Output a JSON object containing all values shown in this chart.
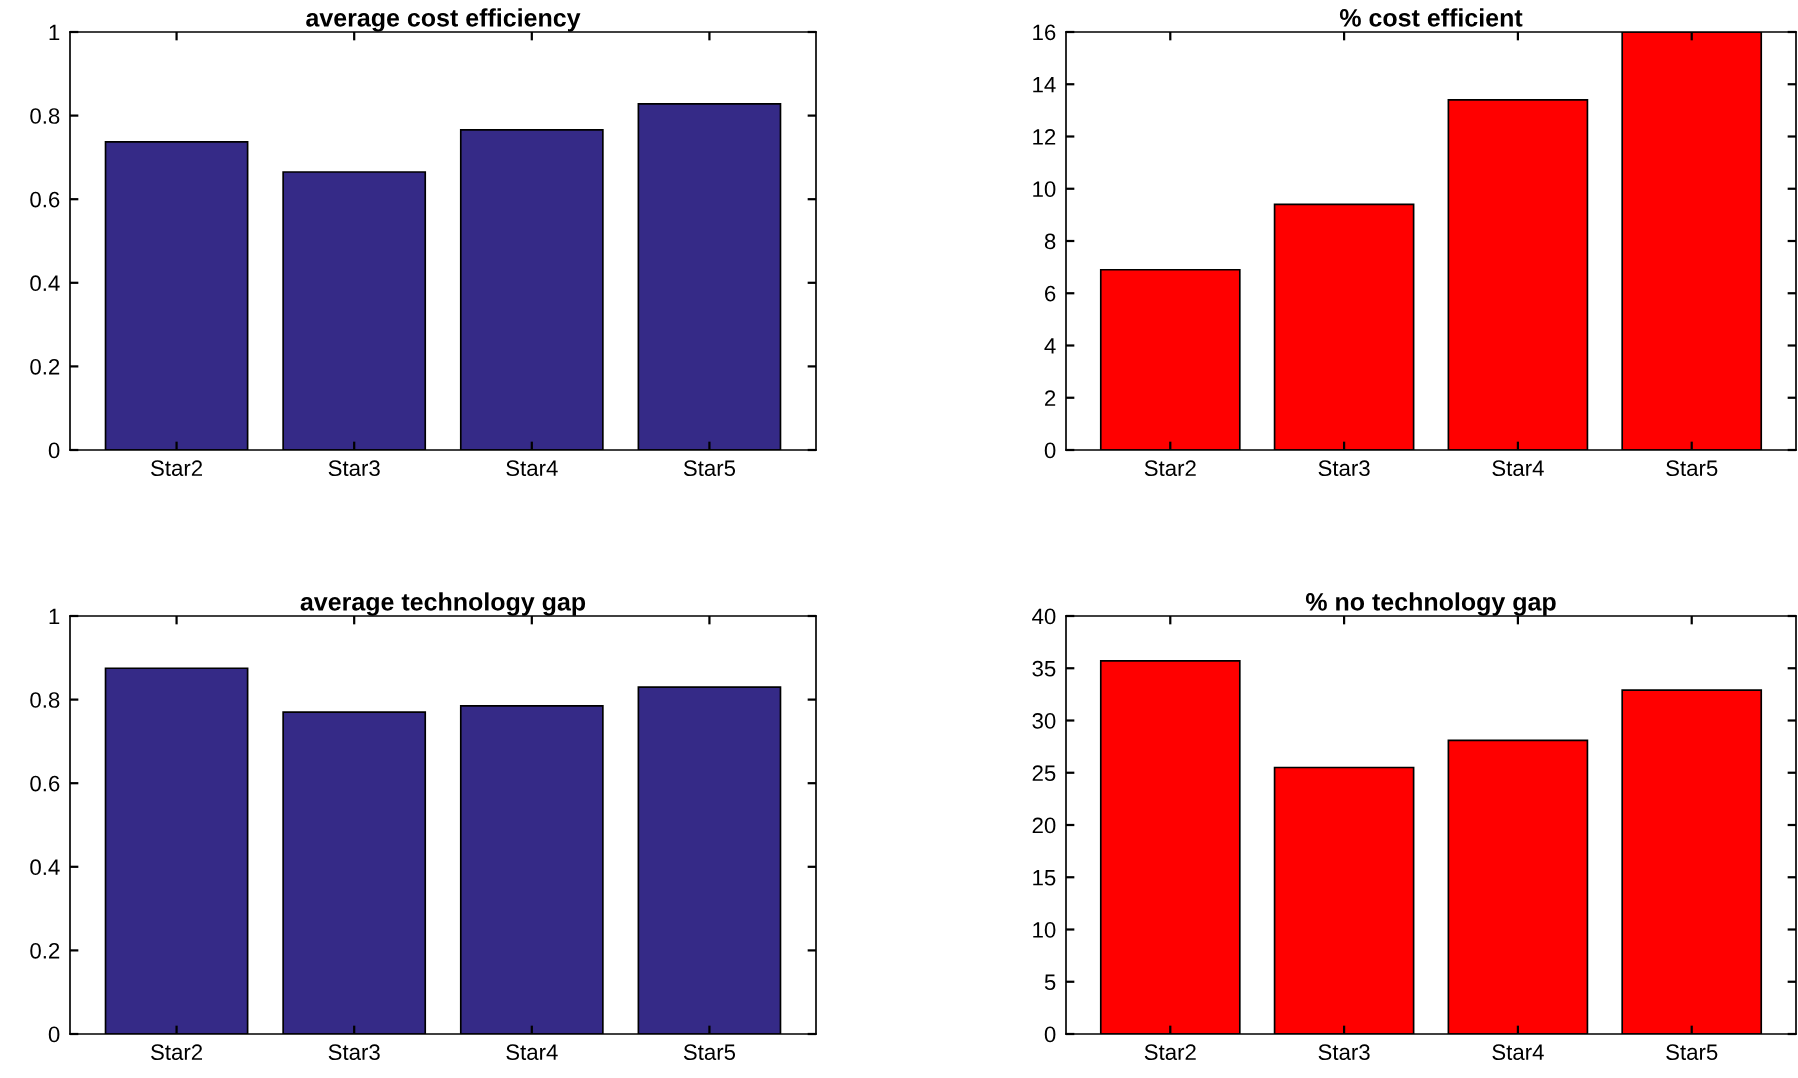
{
  "chart_data": [
    {
      "type": "bar",
      "title": "average cost efficiency",
      "categories": [
        "Star2",
        "Star3",
        "Star4",
        "Star5"
      ],
      "values": [
        0.737,
        0.665,
        0.766,
        0.828
      ],
      "color": "#352a87",
      "ylim": [
        0,
        1
      ],
      "yticks": [
        0,
        0.2,
        0.4,
        0.6,
        0.8,
        1
      ],
      "grid": false
    },
    {
      "type": "bar",
      "title": "% cost efficient",
      "categories": [
        "Star2",
        "Star3",
        "Star4",
        "Star5"
      ],
      "values": [
        6.9,
        9.4,
        13.4,
        16.0
      ],
      "color": "#ff0000",
      "ylim": [
        0,
        16
      ],
      "yticks": [
        0,
        2,
        4,
        6,
        8,
        10,
        12,
        14,
        16
      ],
      "grid": false
    },
    {
      "type": "bar",
      "title": "average technology gap",
      "categories": [
        "Star2",
        "Star3",
        "Star4",
        "Star5"
      ],
      "values": [
        0.875,
        0.77,
        0.785,
        0.83
      ],
      "color": "#352a87",
      "ylim": [
        0,
        1
      ],
      "yticks": [
        0,
        0.2,
        0.4,
        0.6,
        0.8,
        1
      ],
      "grid": false
    },
    {
      "type": "bar",
      "title": "% no technology gap",
      "categories": [
        "Star2",
        "Star3",
        "Star4",
        "Star5"
      ],
      "values": [
        35.7,
        25.5,
        28.1,
        32.9
      ],
      "color": "#ff0000",
      "ylim": [
        0,
        40
      ],
      "yticks": [
        0,
        5,
        10,
        15,
        20,
        25,
        30,
        35,
        40
      ],
      "grid": false
    }
  ]
}
